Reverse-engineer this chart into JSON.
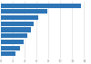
{
  "values": [
    13.5,
    7.8,
    6.2,
    5.5,
    5.0,
    4.4,
    3.8,
    3.2,
    2.5
  ],
  "bar_color": "#2e75b6",
  "background_color": "#ffffff",
  "grid_color": "#d9d9d9",
  "xlim": [
    0,
    15
  ],
  "figsize": [
    1.0,
    0.71
  ],
  "dpi": 100
}
